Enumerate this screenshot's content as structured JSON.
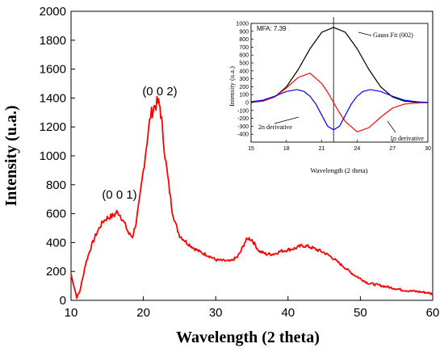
{
  "chart_data": [
    {
      "type": "line",
      "xlabel": "Wavelength (2 theta)",
      "ylabel": "Intensity (u.a.)",
      "xlim": [
        10,
        60
      ],
      "ylim": [
        0,
        2000
      ],
      "x_ticks": [
        10,
        20,
        30,
        40,
        50,
        60
      ],
      "y_ticks": [
        0,
        200,
        400,
        600,
        800,
        1000,
        1200,
        1400,
        1600,
        1800,
        2000
      ],
      "grid": false,
      "series": [
        {
          "color": "#ff0000",
          "x": [
            10,
            10.4,
            10.8,
            11.2,
            11.6,
            12,
            12.5,
            13,
            13.5,
            14,
            14.5,
            15,
            15.5,
            16,
            16.3,
            16.7,
            17,
            17.5,
            18,
            18.5,
            19,
            19.5,
            20,
            20.5,
            21,
            21.5,
            22,
            22.3,
            22.6,
            23,
            23.5,
            24,
            24.5,
            25,
            26,
            27,
            28,
            29,
            30,
            31,
            32,
            33,
            33.5,
            34,
            34.5,
            35,
            35.5,
            36,
            37,
            38,
            39,
            40,
            41,
            42,
            43,
            44,
            45,
            46,
            47,
            48,
            49,
            50,
            51,
            52,
            53,
            54,
            55,
            56,
            57,
            58,
            59,
            60
          ],
          "y": [
            180,
            100,
            20,
            60,
            150,
            250,
            330,
            400,
            460,
            510,
            550,
            570,
            580,
            590,
            610,
            600,
            570,
            520,
            460,
            440,
            540,
            700,
            900,
            1100,
            1280,
            1340,
            1370,
            1340,
            1200,
            1000,
            800,
            620,
            520,
            450,
            400,
            360,
            330,
            310,
            280,
            275,
            270,
            300,
            340,
            400,
            430,
            420,
            380,
            340,
            320,
            320,
            340,
            350,
            360,
            380,
            370,
            350,
            330,
            300,
            260,
            220,
            180,
            150,
            120,
            110,
            100,
            90,
            80,
            70,
            65,
            60,
            55,
            45
          ]
        }
      ],
      "annotations": [
        "(0 0 1)",
        "(0 0 2)"
      ]
    },
    {
      "type": "line",
      "xlabel": "Wavelength (2 theta)",
      "ylabel": "Intensity (u.a.)",
      "xlim": [
        15,
        30
      ],
      "ylim": [
        -500,
        1000
      ],
      "x_ticks": [
        15,
        18,
        21,
        24,
        27,
        30
      ],
      "y_ticks": [
        -400,
        -300,
        -200,
        -100,
        0,
        100,
        200,
        300,
        400,
        500,
        600,
        700,
        800,
        900,
        1000
      ],
      "grid": false,
      "peak_x": 22,
      "annotations": [
        "MFA: 7.39",
        "Gauss Fit (002)",
        "2n derivative",
        "1n derivative"
      ],
      "series": [
        {
          "color": "#000000",
          "x": [
            15,
            16,
            17,
            18,
            19,
            20,
            21,
            22,
            23,
            24,
            25,
            26,
            27,
            28,
            29,
            30
          ],
          "y": [
            4,
            18,
            70,
            198,
            417,
            680,
            888,
            950,
            888,
            680,
            417,
            198,
            70,
            18,
            4,
            0
          ]
        },
        {
          "color": "#ff0000",
          "x": [
            15,
            16,
            17,
            18,
            19,
            20,
            21,
            21.5,
            22,
            22.5,
            23,
            24,
            25,
            26,
            27,
            28,
            29,
            30
          ],
          "y": [
            6,
            20,
            70,
            185,
            318,
            371,
            240,
            130,
            0,
            -130,
            -240,
            -371,
            -318,
            -185,
            -70,
            -20,
            -6,
            0
          ]
        },
        {
          "color": "#0000ff",
          "x": [
            15,
            16,
            17,
            18,
            18.9,
            19.5,
            20,
            20.5,
            21,
            21.5,
            22,
            22.5,
            23,
            23.5,
            24,
            24.5,
            25.1,
            26,
            27,
            28,
            29,
            30
          ],
          "y": [
            10,
            30,
            80,
            140,
            164,
            140,
            80,
            -20,
            -160,
            -300,
            -345,
            -300,
            -160,
            -20,
            80,
            140,
            164,
            140,
            80,
            30,
            10,
            0
          ]
        }
      ]
    }
  ]
}
